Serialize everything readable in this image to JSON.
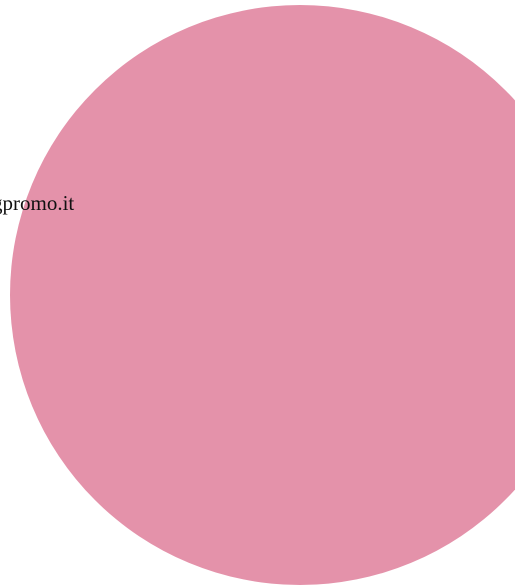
{
  "page": {
    "text": "gpromo.it"
  },
  "colors": {
    "background": "#ffffff",
    "circle": "#e492aa",
    "text": "#111111"
  }
}
